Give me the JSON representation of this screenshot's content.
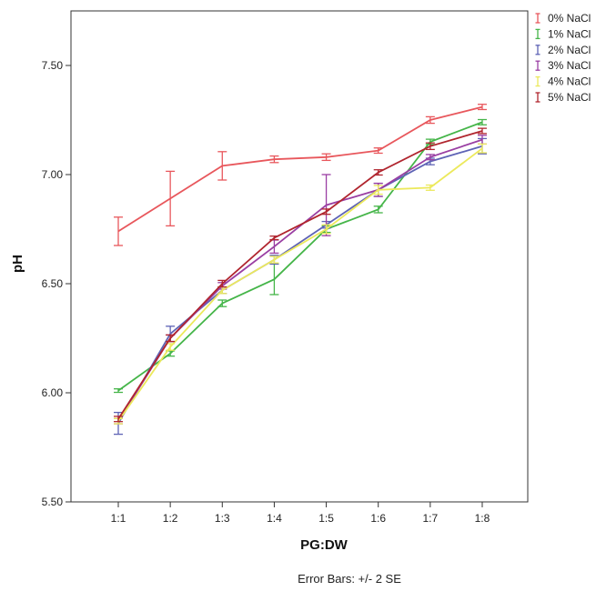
{
  "chart_data": {
    "type": "line",
    "xlabel": "PG:DW",
    "ylabel": "pH",
    "categories": [
      "1:1",
      "1:2",
      "1:3",
      "1:4",
      "1:5",
      "1:6",
      "1:7",
      "1:8"
    ],
    "ylim": [
      5.5,
      7.75
    ],
    "yticks": [
      "5.50",
      "6.00",
      "6.50",
      "7.00",
      "7.50"
    ],
    "ytick_values": [
      5.5,
      6.0,
      6.5,
      7.0,
      7.5
    ],
    "grid": false,
    "legend_position": "top-right",
    "note": "Error Bars: +/- 2 SE",
    "series": [
      {
        "name": "0% NaCl",
        "color": "#e8575c",
        "values": [
          6.74,
          6.89,
          7.04,
          7.07,
          7.08,
          7.11,
          7.25,
          7.31
        ],
        "errors": [
          0.065,
          0.125,
          0.065,
          0.015,
          0.015,
          0.012,
          0.015,
          0.012
        ]
      },
      {
        "name": "1% NaCl",
        "color": "#45b549",
        "values": [
          6.01,
          6.18,
          6.41,
          6.52,
          6.75,
          6.84,
          7.15,
          7.24
        ],
        "errors": [
          0.008,
          0.012,
          0.015,
          0.07,
          0.015,
          0.015,
          0.012,
          0.012
        ]
      },
      {
        "name": "2% NaCl",
        "color": "#5e63b5",
        "values": [
          5.86,
          6.27,
          6.47,
          6.61,
          6.77,
          6.93,
          7.06,
          7.13
        ],
        "errors": [
          0.05,
          0.035,
          0.015,
          0.02,
          0.015,
          0.03,
          0.015,
          0.035
        ]
      },
      {
        "name": "3% NaCl",
        "color": "#9a3fa3",
        "values": [
          5.87,
          6.25,
          6.49,
          6.67,
          6.86,
          6.93,
          7.08,
          7.16
        ],
        "errors": [
          0.012,
          0.015,
          0.015,
          0.03,
          0.14,
          0.03,
          0.012,
          0.02
        ]
      },
      {
        "name": "4% NaCl",
        "color": "#ece95c",
        "values": [
          5.87,
          6.21,
          6.47,
          6.61,
          6.75,
          6.93,
          6.94,
          7.12
        ],
        "errors": [
          0.012,
          0.015,
          0.015,
          0.015,
          0.02,
          0.02,
          0.012,
          0.02
        ]
      },
      {
        "name": "5% NaCl",
        "color": "#b0252e",
        "values": [
          5.88,
          6.25,
          6.5,
          6.71,
          6.83,
          7.01,
          7.13,
          7.2
        ],
        "errors": [
          0.012,
          0.015,
          0.015,
          0.008,
          0.012,
          0.012,
          0.015,
          0.012
        ]
      }
    ]
  }
}
